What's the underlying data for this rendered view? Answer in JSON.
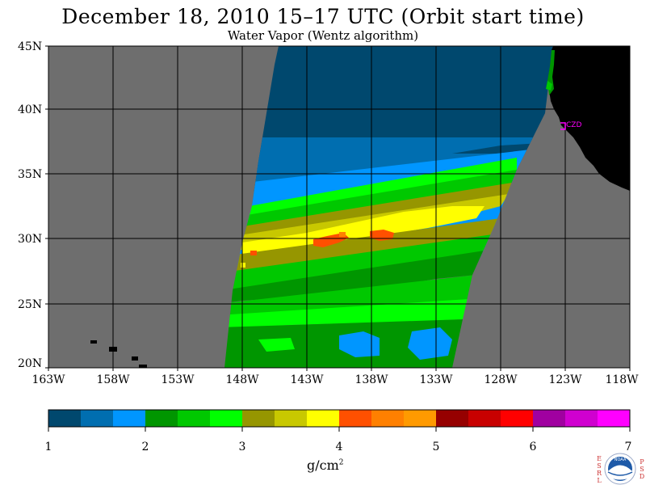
{
  "title": "December 18, 2010  15–17 UTC  (Orbit start time)",
  "subtitle": "Water Vapor (Wentz algorithm)",
  "map": {
    "lat_labels": [
      "45N",
      "40N",
      "35N",
      "30N",
      "25N",
      "20N"
    ],
    "lon_labels": [
      "163W",
      "158W",
      "153W",
      "148W",
      "143W",
      "138W",
      "133W",
      "128W",
      "123W",
      "118W"
    ],
    "station_label": "CZD",
    "colors": {
      "no_data": "#6e6e6e",
      "land": "#000000",
      "station": "#ff00ff",
      "grid": "#000000"
    }
  },
  "colorbar": {
    "labels": [
      "1",
      "2",
      "3",
      "4",
      "5",
      "6",
      "7"
    ],
    "units_base": "g/cm",
    "units_exp": "2",
    "colors": [
      "#00486e",
      "#006eb0",
      "#0096ff",
      "#009600",
      "#00c800",
      "#00ff00",
      "#969600",
      "#c8c800",
      "#ffff00",
      "#ff5000",
      "#ff8000",
      "#ff9a00",
      "#960000",
      "#c80000",
      "#ff0000",
      "#a000a0",
      "#d000d0",
      "#ff00ff"
    ]
  },
  "logo": {
    "left_letters": [
      "E",
      "S",
      "R",
      "L"
    ],
    "right_letters": [
      "P",
      "S",
      "D"
    ],
    "text": "NOAA"
  }
}
